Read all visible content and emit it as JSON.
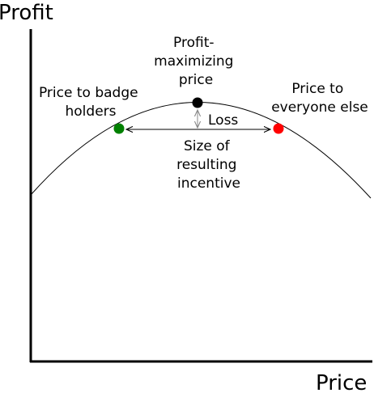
{
  "axes": {
    "y_title": "Profit",
    "x_title": "Price"
  },
  "annotations": {
    "optimum": [
      "Profit-",
      "maximizing",
      "price"
    ],
    "badge_price": [
      "Price to badge",
      "holders"
    ],
    "everyone_price": [
      "Price to",
      "everyone else"
    ],
    "loss": "Loss",
    "incentive": [
      "Size of",
      "resulting",
      "incentive"
    ]
  },
  "points": {
    "optimum_color": "#000000",
    "badge_color": "#008000",
    "everyone_color": "#ff0000"
  }
}
